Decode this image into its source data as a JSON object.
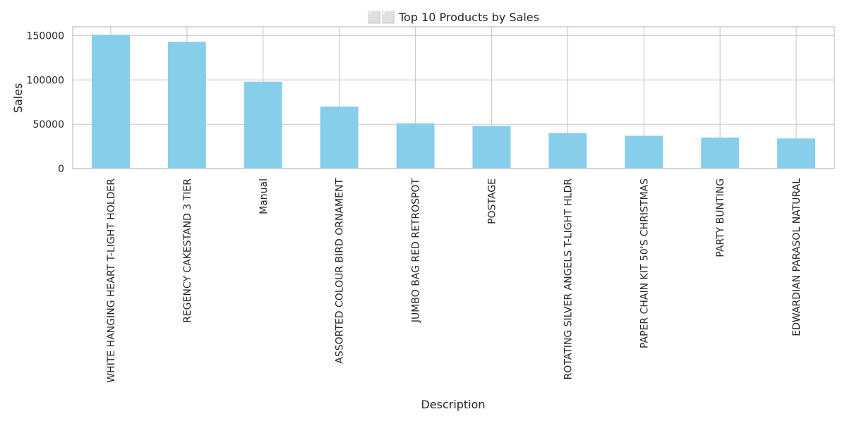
{
  "chart_data": {
    "type": "bar",
    "title": "⬜⬜ Top 10 Products by Sales",
    "xlabel": "Description",
    "ylabel": "Sales",
    "categories": [
      "WHITE HANGING HEART T-LIGHT HOLDER",
      "REGENCY CAKESTAND 3 TIER",
      "Manual",
      "ASSORTED COLOUR BIRD ORNAMENT",
      "JUMBO BAG RED RETROSPOT",
      "POSTAGE",
      "ROTATING SILVER ANGELS T-LIGHT HLDR",
      "PAPER CHAIN KIT 50'S CHRISTMAS",
      "PARTY BUNTING",
      "EDWARDIAN PARASOL NATURAL"
    ],
    "values": [
      151000,
      143000,
      98000,
      70000,
      51000,
      48000,
      40000,
      37000,
      35000,
      34000
    ],
    "ylim": [
      0,
      160000
    ],
    "yticks": [
      0,
      50000,
      100000,
      150000
    ],
    "grid": true,
    "colors": {
      "bar": "#87ceeb",
      "grid": "#cccccc",
      "text": "#262626"
    }
  }
}
